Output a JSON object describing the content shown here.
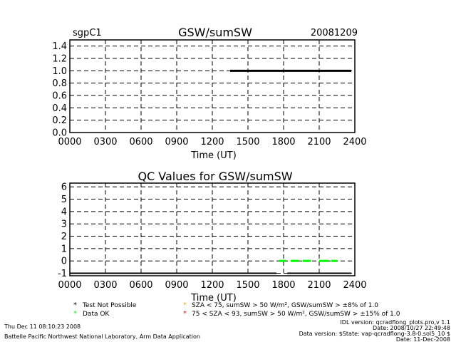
{
  "colors": {
    "background": "#ffffff",
    "axes": "#000000",
    "ok": "#00ff00",
    "warn": "#ffa500",
    "bad": "#ff0000"
  },
  "chart_data": [
    {
      "type": "line",
      "site": "sgpC1",
      "title": "GSW/sumSW",
      "date": "20081209",
      "xlabel": "Time (UT)",
      "ylabel": "",
      "x_tick_labels": [
        "0000",
        "0300",
        "0600",
        "0900",
        "1200",
        "1500",
        "1800",
        "2100",
        "2400"
      ],
      "y_tick_labels": [
        "0.0",
        "0.2",
        "0.4",
        "0.6",
        "0.8",
        "1.0",
        "1.2",
        "1.4"
      ],
      "xlim": [
        0,
        24
      ],
      "ylim": [
        0,
        1.5
      ],
      "grid": true,
      "series": [
        {
          "x": [
            13.5,
            23.7
          ],
          "y": [
            1.0,
            1.0
          ],
          "color": "#000000"
        }
      ]
    },
    {
      "type": "scatter",
      "title": "QC Values for GSW/sumSW",
      "xlabel": "Time (UT)",
      "ylabel": "",
      "x_tick_labels": [
        "0000",
        "0300",
        "0600",
        "0900",
        "1200",
        "1500",
        "1800",
        "2100",
        "2400"
      ],
      "y_tick_labels": [
        "-1",
        "0",
        "1",
        "2",
        "3",
        "4",
        "5",
        "6"
      ],
      "xlim": [
        0,
        24
      ],
      "ylim": [
        -1.2,
        6.3
      ],
      "grid": true,
      "baseline_segments": [
        {
          "x": [
            0.0,
            17.4
          ],
          "y": -1,
          "color": "#000000"
        },
        {
          "x": [
            18.3,
            23.7
          ],
          "y": -1,
          "color": "#000000"
        }
      ],
      "ok_segments": [
        {
          "x": [
            17.6,
            18.2
          ],
          "y": 0,
          "color": "#00ff00"
        },
        {
          "x": [
            18.6,
            19.3
          ],
          "y": 0,
          "color": "#00ff00"
        },
        {
          "x": [
            19.6,
            20.3
          ],
          "y": 0,
          "color": "#00ff00"
        },
        {
          "x": [
            21.0,
            21.8
          ],
          "y": 0,
          "color": "#00ff00"
        },
        {
          "x": [
            22.0,
            22.5
          ],
          "y": 0,
          "color": "#00ff00"
        }
      ]
    }
  ],
  "legend": [
    {
      "symbol": "*",
      "color": "#000000",
      "label": "Test Not Possible"
    },
    {
      "symbol": "*",
      "color": "#00ff00",
      "label": "Data OK"
    },
    {
      "symbol": "*",
      "color": "#ffa500",
      "label": "SZA < 75, sumSW > 50 W/m², GSW/sumSW > ±8% of 1.0"
    },
    {
      "symbol": "*",
      "color": "#ff0000",
      "label": "75 < SZA < 93, sumSW > 50 W/m², GSW/sumSW > ±15% of 1.0"
    }
  ],
  "footer": {
    "left_line1": "Thu Dec 11 08:10:23 2008",
    "left_line2": "Battelle Pacific Northwest National Laboratory, Arm Data Application",
    "right_line1": "IDL version: qcradflong_plots.pro,v 1.1",
    "right_line2": "Date: 2008/10/27 22:49:48",
    "right_line3": "Data version: $State: vap-qcradflong-3.8-0.sol5_10 $",
    "right_line4": "Date: 11-Dec-2008"
  }
}
